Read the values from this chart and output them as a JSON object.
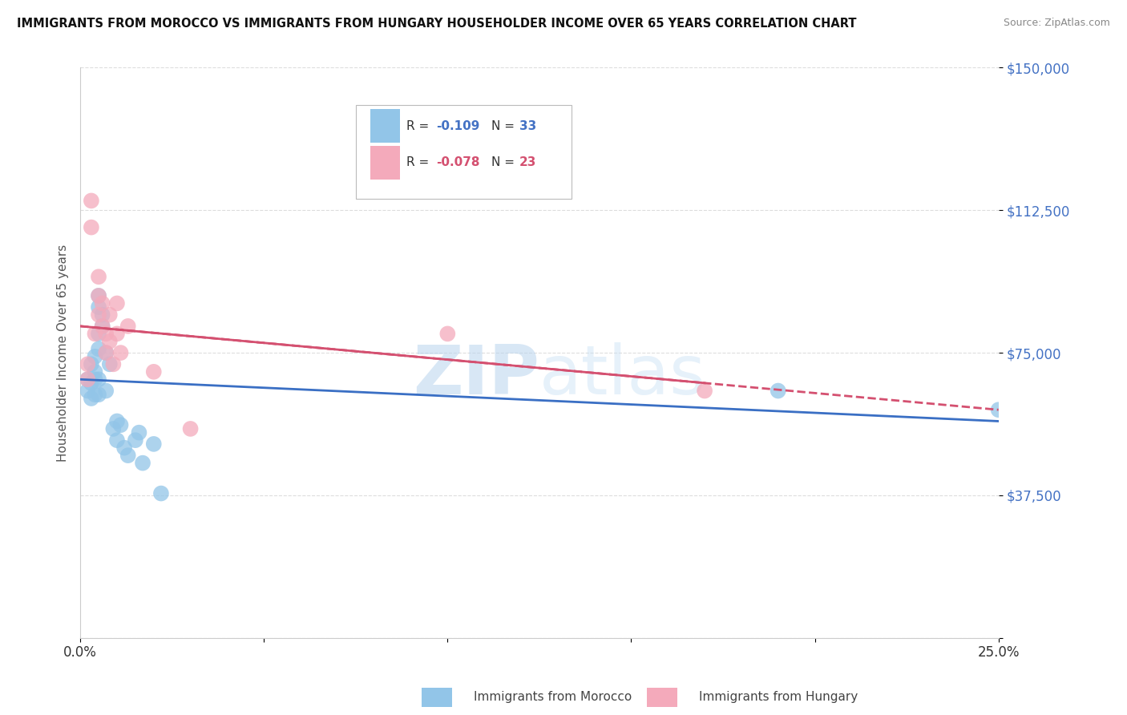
{
  "title": "IMMIGRANTS FROM MOROCCO VS IMMIGRANTS FROM HUNGARY HOUSEHOLDER INCOME OVER 65 YEARS CORRELATION CHART",
  "source": "Source: ZipAtlas.com",
  "ylabel": "Householder Income Over 65 years",
  "xlim": [
    0.0,
    0.25
  ],
  "ylim": [
    0,
    150000
  ],
  "yticks": [
    0,
    37500,
    75000,
    112500,
    150000
  ],
  "ytick_labels": [
    "",
    "$37,500",
    "$75,000",
    "$112,500",
    "$150,000"
  ],
  "xticks": [
    0.0,
    0.05,
    0.1,
    0.15,
    0.2,
    0.25
  ],
  "xtick_labels": [
    "0.0%",
    "",
    "",
    "",
    "",
    "25.0%"
  ],
  "morocco_color": "#92C5E8",
  "hungary_color": "#F4AABB",
  "morocco_line_color": "#3A6FC4",
  "hungary_line_color": "#D45070",
  "watermark_color": "#CCDDF0",
  "morocco_x": [
    0.002,
    0.002,
    0.003,
    0.003,
    0.003,
    0.004,
    0.004,
    0.004,
    0.004,
    0.005,
    0.005,
    0.005,
    0.005,
    0.005,
    0.005,
    0.006,
    0.006,
    0.007,
    0.007,
    0.008,
    0.009,
    0.01,
    0.01,
    0.011,
    0.012,
    0.013,
    0.015,
    0.016,
    0.017,
    0.02,
    0.022,
    0.19,
    0.25
  ],
  "morocco_y": [
    68000,
    65000,
    72000,
    67000,
    63000,
    74000,
    70000,
    68000,
    64000,
    90000,
    87000,
    80000,
    76000,
    68000,
    64000,
    85000,
    82000,
    75000,
    65000,
    72000,
    55000,
    57000,
    52000,
    56000,
    50000,
    48000,
    52000,
    54000,
    46000,
    51000,
    38000,
    65000,
    60000
  ],
  "hungary_x": [
    0.002,
    0.002,
    0.003,
    0.003,
    0.004,
    0.005,
    0.005,
    0.005,
    0.006,
    0.006,
    0.007,
    0.007,
    0.008,
    0.008,
    0.009,
    0.01,
    0.01,
    0.011,
    0.013,
    0.02,
    0.03,
    0.1,
    0.17
  ],
  "hungary_y": [
    72000,
    68000,
    115000,
    108000,
    80000,
    95000,
    90000,
    85000,
    88000,
    82000,
    80000,
    75000,
    85000,
    78000,
    72000,
    88000,
    80000,
    75000,
    82000,
    70000,
    55000,
    80000,
    65000
  ],
  "background_color": "#FFFFFF",
  "grid_color": "#DDDDDD",
  "legend_R_morocco": "-0.109",
  "legend_N_morocco": "33",
  "legend_R_hungary": "-0.078",
  "legend_N_hungary": "23"
}
